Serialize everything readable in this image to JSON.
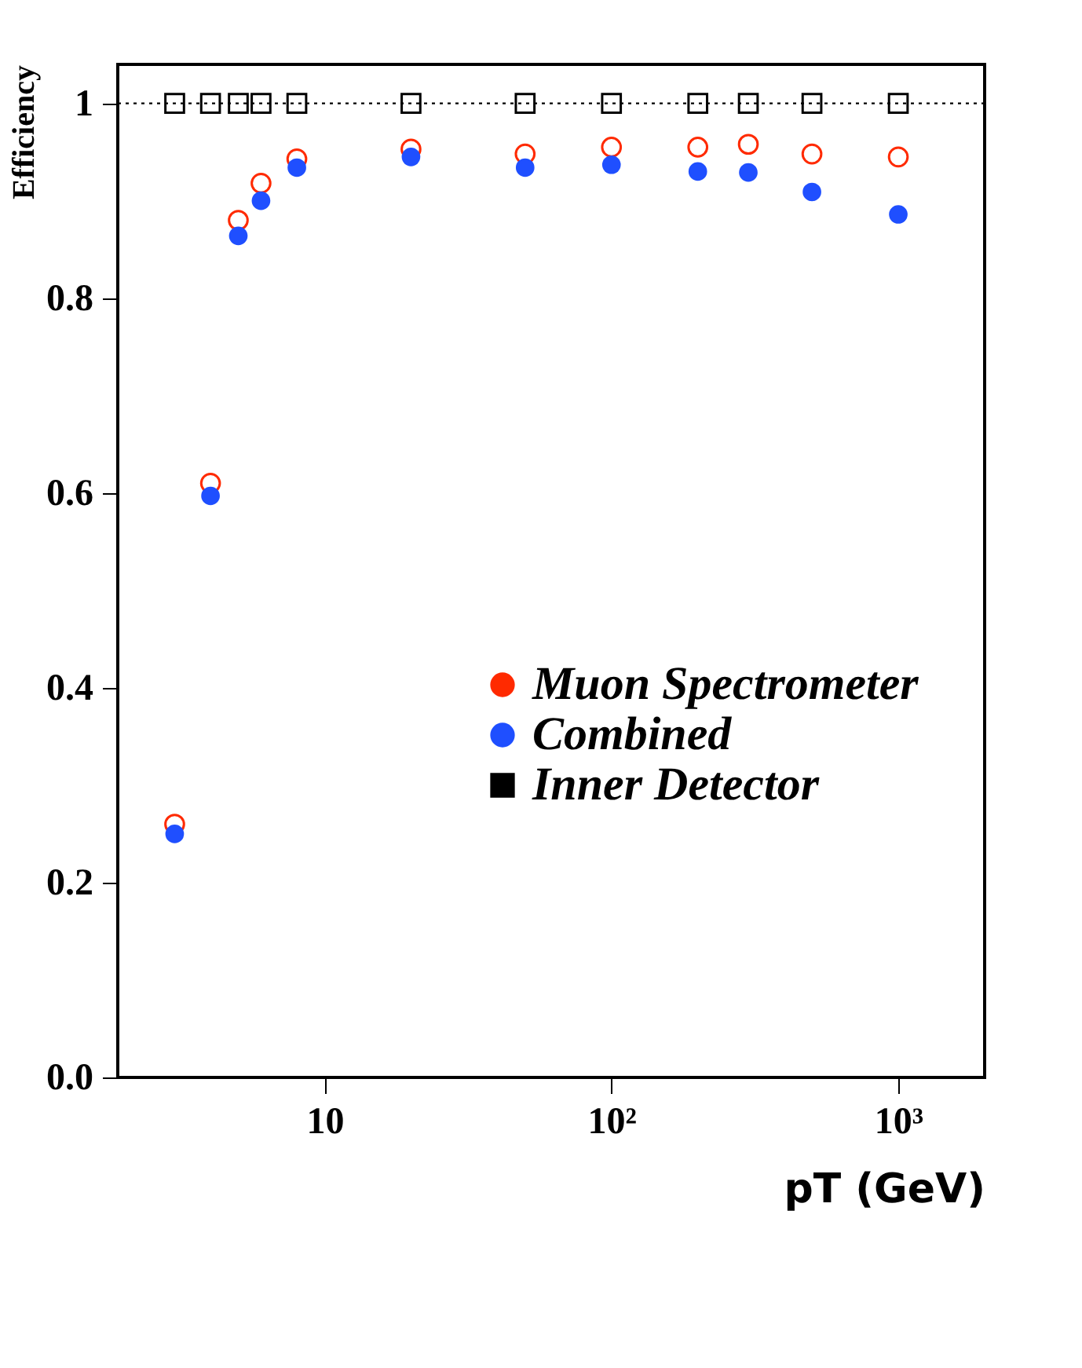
{
  "chart_data": {
    "type": "scatter",
    "xlabel": "pT (GeV)",
    "ylabel": "Efficiency",
    "x": [
      3,
      4,
      5,
      6,
      8,
      20,
      50,
      100,
      200,
      300,
      500,
      1000
    ],
    "series": [
      {
        "name": "Muon Spectrometer",
        "color": "#ff2a00",
        "marker": "circle",
        "values": [
          0.26,
          0.61,
          0.88,
          0.918,
          0.943,
          0.953,
          0.948,
          0.955,
          0.955,
          0.958,
          0.948,
          0.945
        ]
      },
      {
        "name": "Combined",
        "color": "#1f4fff",
        "marker": "circle",
        "values": [
          0.25,
          0.597,
          0.864,
          0.9,
          0.934,
          0.945,
          0.934,
          0.937,
          0.93,
          0.929,
          0.909,
          0.886
        ]
      },
      {
        "name": "Inner Detector",
        "color": "#000000",
        "marker": "square",
        "values": [
          1.0,
          1.0,
          1.0,
          1.0,
          1.0,
          1.0,
          1.0,
          1.0,
          1.0,
          1.0,
          1.0,
          1.0
        ]
      }
    ],
    "log": "x",
    "xlim": [
      1.9,
      2000
    ],
    "xticks": [
      {
        "value": 10,
        "label": "10"
      },
      {
        "value": 100,
        "label": "10²"
      },
      {
        "value": 1000,
        "label": "10³"
      }
    ],
    "ylim": [
      0,
      1.04
    ],
    "yticks": [
      {
        "value": 0,
        "label": "0.0"
      },
      {
        "value": 0.2,
        "label": "0.2"
      },
      {
        "value": 0.4,
        "label": "0.4"
      },
      {
        "value": 0.6,
        "label": "0.6"
      },
      {
        "value": 0.8,
        "label": "0.8"
      },
      1
    ],
    "ref_lines": [
      {
        "axis": "y",
        "value": 1,
        "line_style": "dotted",
        "color": "#000000"
      }
    ],
    "grid": false,
    "legend": "center right"
  }
}
